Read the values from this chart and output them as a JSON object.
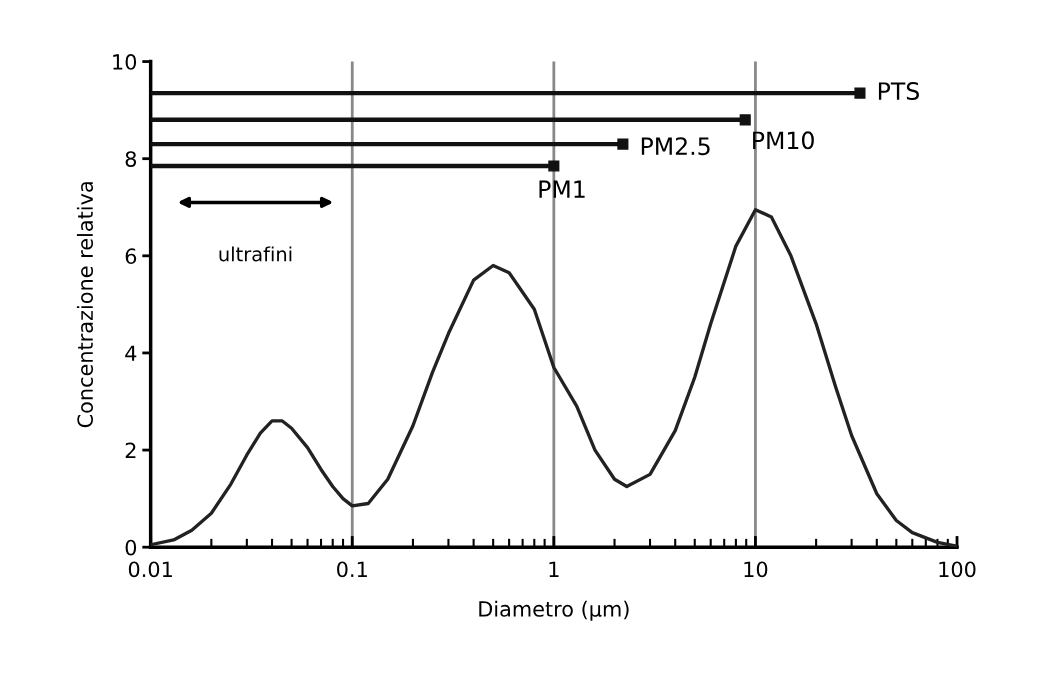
{
  "chart_data": {
    "type": "line",
    "xlabel": "Diametro (μm)",
    "ylabel": "Concentrazione relativa",
    "log": "x",
    "xlim": [
      0.01,
      100
    ],
    "xticks": [
      0.01,
      0.1,
      1,
      10,
      100
    ],
    "ylim": [
      0,
      10
    ],
    "yticks": [
      0,
      2,
      4,
      6,
      8,
      10
    ],
    "grid": "x",
    "marker": "none",
    "line_style": "solid",
    "series": [
      {
        "color": "#222222",
        "x": [
          0.01,
          0.013,
          0.016,
          0.02,
          0.025,
          0.03,
          0.035,
          0.04,
          0.045,
          0.05,
          0.06,
          0.07,
          0.08,
          0.09,
          0.1,
          0.12,
          0.15,
          0.2,
          0.25,
          0.3,
          0.4,
          0.5,
          0.6,
          0.8,
          1,
          1.3,
          1.6,
          2,
          2.3,
          3,
          4,
          5,
          6,
          8,
          10,
          12,
          15,
          20,
          25,
          30,
          40,
          50,
          60,
          80,
          100
        ],
        "values": [
          0.05,
          0.15,
          0.35,
          0.7,
          1.3,
          1.9,
          2.35,
          2.6,
          2.6,
          2.45,
          2.05,
          1.6,
          1.25,
          1.0,
          0.85,
          0.9,
          1.4,
          2.5,
          3.6,
          4.4,
          5.5,
          5.8,
          5.65,
          4.9,
          3.7,
          2.9,
          2.0,
          1.4,
          1.25,
          1.5,
          2.4,
          3.5,
          4.6,
          6.2,
          6.95,
          6.8,
          6.0,
          4.6,
          3.3,
          2.3,
          1.1,
          0.55,
          0.3,
          0.1,
          0.02
        ]
      },
      {
        "name": "PTS",
        "color": "#111111",
        "marker": "square",
        "x": [
          0.01,
          33
        ],
        "values": [
          9.35,
          9.35
        ]
      },
      {
        "name": "PM10",
        "color": "#111111",
        "marker": "square",
        "x": [
          0.01,
          8.9
        ],
        "values": [
          8.8,
          8.8
        ]
      },
      {
        "name": "PM2.5",
        "color": "#111111",
        "marker": "square",
        "x": [
          0.01,
          2.2
        ],
        "values": [
          8.3,
          8.3
        ]
      },
      {
        "name": "PM1",
        "color": "#111111",
        "marker": "square",
        "x": [
          0.01,
          1
        ],
        "values": [
          7.85,
          7.85
        ]
      }
    ],
    "annotations": [
      "ultrafini"
    ]
  }
}
